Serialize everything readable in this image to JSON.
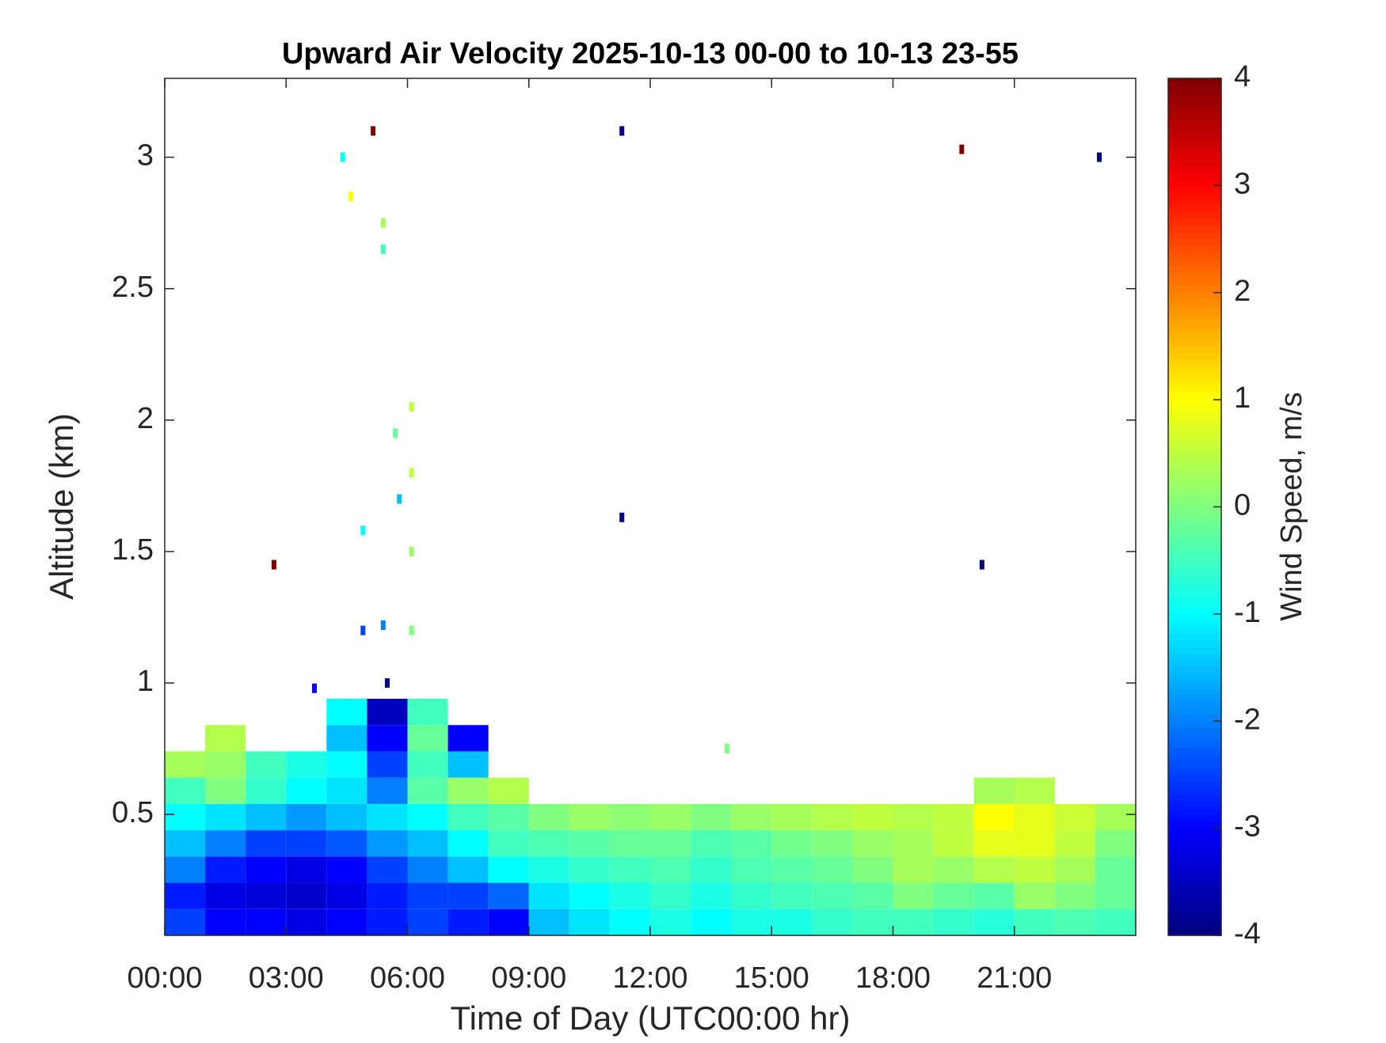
{
  "chart_data": {
    "type": "heatmap",
    "title": "Upward Air Velocity 2025-10-13 00-00 to 10-13 23-55",
    "x_label": "Time of Day (UTC00:00 hr)",
    "y_label": "Altitude (km)",
    "colorbar_label": "Wind Speed, m/s",
    "colormap": "jet",
    "xlim": [
      0,
      24
    ],
    "ylim": [
      0.04,
      3.3
    ],
    "xticks": [
      {
        "value": 0,
        "label": "00:00"
      },
      {
        "value": 3,
        "label": "03:00"
      },
      {
        "value": 6,
        "label": "06:00"
      },
      {
        "value": 9,
        "label": "09:00"
      },
      {
        "value": 12,
        "label": "12:00"
      },
      {
        "value": 15,
        "label": "15:00"
      },
      {
        "value": 18,
        "label": "18:00"
      },
      {
        "value": 21,
        "label": "21:00"
      }
    ],
    "yticks": [
      0.5,
      1,
      1.5,
      2,
      2.5,
      3
    ],
    "clim": [
      -4,
      4
    ],
    "cticks": [
      -4,
      -3,
      -2,
      -1,
      0,
      1,
      2,
      3,
      4
    ],
    "x": [
      0.5,
      1.5,
      2.5,
      3.5,
      4.5,
      5.5,
      6.5,
      7.5,
      8.5,
      9.5,
      10.5,
      11.5,
      12.5,
      13.5,
      14.5,
      15.5,
      16.5,
      17.5,
      18.5,
      19.5,
      20.5,
      21.5,
      22.5,
      23.5
    ],
    "y": [
      0.09,
      0.19,
      0.29,
      0.39,
      0.49,
      0.59,
      0.69,
      0.79,
      0.89
    ],
    "z": [
      [
        -2.5,
        -3,
        -3,
        -3.2,
        -3,
        -2.8,
        -2.5,
        -2.8,
        -3,
        -1.5,
        -1.2,
        -1,
        -0.8,
        -1,
        -0.8,
        -0.8,
        -0.6,
        -0.5,
        -0.5,
        -0.6,
        -0.7,
        -0.5,
        -0.4,
        -0.5
      ],
      [
        -2.8,
        -3.2,
        -3.3,
        -3.4,
        -3.2,
        -2.8,
        -2.5,
        -2.5,
        -2.2,
        -1.2,
        -1,
        -0.8,
        -0.6,
        -0.8,
        -0.6,
        -0.5,
        -0.4,
        -0.3,
        0,
        -0.2,
        -0.3,
        0.2,
        0,
        -0.2
      ],
      [
        -2,
        -2.8,
        -3,
        -3.2,
        -3,
        -2.5,
        -2,
        -1.5,
        -1,
        -0.8,
        -0.6,
        -0.5,
        -0.4,
        -0.6,
        -0.4,
        -0.3,
        -0.2,
        0,
        0.3,
        0.2,
        0.4,
        0.5,
        0.3,
        -0.2
      ],
      [
        -1.5,
        -2,
        -2.5,
        -2.5,
        -2.3,
        -1.8,
        -1.5,
        -1,
        -0.5,
        -0.4,
        -0.3,
        -0.2,
        -0.2,
        -0.4,
        -0.3,
        -0.1,
        0,
        0.2,
        0.3,
        0.5,
        0.8,
        0.8,
        0.5,
        0
      ],
      [
        -1,
        -1.2,
        -1.5,
        -1.8,
        -1.5,
        -1.2,
        -1,
        -0.5,
        -0.3,
        0,
        0.2,
        0.1,
        0.2,
        0,
        0.2,
        0.3,
        0.4,
        0.5,
        0.4,
        0.5,
        1,
        0.8,
        0.6,
        0.3
      ],
      [
        -0.5,
        0,
        -0.6,
        -1,
        -1.2,
        -2,
        -0.3,
        0.2,
        0.4,
        null,
        null,
        null,
        null,
        null,
        null,
        null,
        null,
        null,
        null,
        null,
        0.3,
        0.4,
        null,
        null
      ],
      [
        0.3,
        0.2,
        -0.5,
        -0.8,
        -1,
        -2.5,
        -0.5,
        -1.5,
        null,
        null,
        null,
        null,
        null,
        null,
        null,
        null,
        null,
        null,
        null,
        null,
        null,
        null,
        null,
        null
      ],
      [
        null,
        0.4,
        null,
        null,
        -1.5,
        -3,
        -0.2,
        -3,
        null,
        null,
        null,
        null,
        null,
        null,
        null,
        null,
        null,
        null,
        null,
        null,
        null,
        null,
        null,
        null
      ],
      [
        null,
        null,
        null,
        null,
        -1,
        -3.5,
        -0.5,
        null,
        null,
        null,
        null,
        null,
        null,
        null,
        null,
        null,
        null,
        null,
        null,
        null,
        null,
        null,
        null,
        null
      ]
    ],
    "points": {
      "x": [
        6.1,
        6.1,
        6.1,
        6.1,
        5.8,
        5.7,
        5.4,
        5.4,
        4.6,
        4.4,
        5.15,
        11.3,
        19.7,
        23.1,
        2.7,
        11.3,
        20.2,
        4.9,
        4.9,
        5.4,
        5.5,
        3.7,
        13.9
      ],
      "y": [
        1.2,
        1.5,
        1.8,
        2.05,
        1.7,
        1.95,
        2.65,
        2.75,
        2.85,
        3.0,
        3.1,
        3.1,
        3.03,
        3.0,
        1.45,
        1.63,
        1.45,
        1.58,
        1.2,
        1.22,
        1.0,
        0.98,
        0.75
      ],
      "values": [
        0,
        0.2,
        0.5,
        0.5,
        -1.5,
        -0.2,
        -0.5,
        0.3,
        1,
        -1,
        4,
        -4,
        4,
        -4,
        4,
        -4,
        -4,
        -1,
        -2.5,
        -2,
        -4,
        -3,
        0
      ]
    }
  }
}
